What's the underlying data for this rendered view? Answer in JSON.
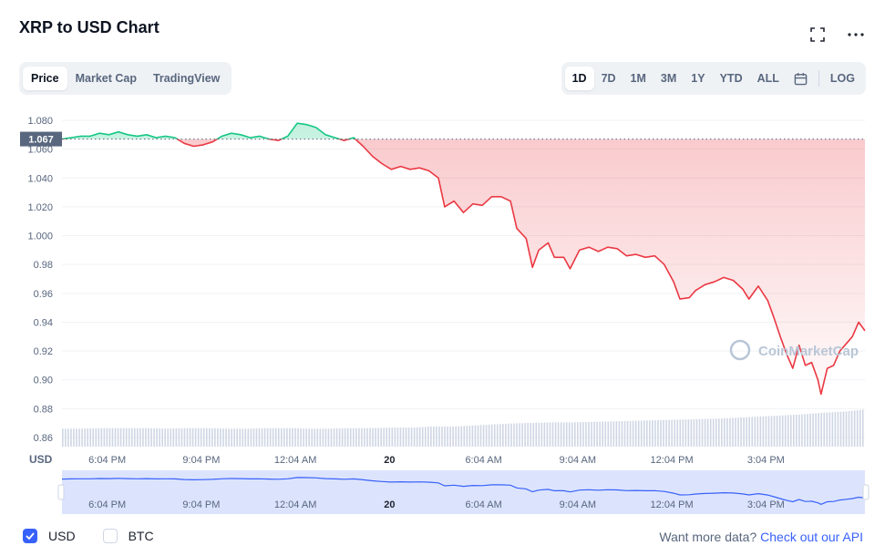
{
  "header": {
    "title": "XRP to USD Chart"
  },
  "icons": {
    "fullscreen": "fullscreen-icon",
    "more": "more-icon",
    "calendar": "calendar-icon",
    "watermark": "coinmarketcap-logo"
  },
  "tabs_left": [
    {
      "label": "Price",
      "active": true
    },
    {
      "label": "Market Cap",
      "active": false
    },
    {
      "label": "TradingView",
      "active": false
    }
  ],
  "tabs_right": [
    {
      "label": "1D",
      "active": true
    },
    {
      "label": "7D",
      "active": false
    },
    {
      "label": "1M",
      "active": false
    },
    {
      "label": "3M",
      "active": false
    },
    {
      "label": "1Y",
      "active": false
    },
    {
      "label": "YTD",
      "active": false
    },
    {
      "label": "ALL",
      "active": false
    }
  ],
  "log_label": "LOG",
  "legend": {
    "usd": "USD",
    "btc": "BTC"
  },
  "api": {
    "text": "Want more data?",
    "link": "Check out our API"
  },
  "watermark": "CoinMarketCap",
  "colors": {
    "up": "#16c784",
    "down": "#ea3943",
    "accent": "#3861fb",
    "volume": "#cfd6e4",
    "navigator_fill": "#dce4fd"
  },
  "chart_data": {
    "type": "line",
    "currency_label": "USD",
    "reference_price": 1.067,
    "reference_label": "1.067",
    "ylim": [
      0.86,
      1.08
    ],
    "y_ticks": [
      0.86,
      0.88,
      0.9,
      0.92,
      0.94,
      0.96,
      0.98,
      1.0,
      1.02,
      1.04,
      1.06,
      1.08
    ],
    "y_tick_labels": [
      "0.86",
      "0.88",
      "0.90",
      "0.92",
      "0.94",
      "0.96",
      "0.98",
      "1.000",
      "1.020",
      "1.040",
      "1.060",
      "1.080"
    ],
    "x_ticks": [
      "6:04 PM",
      "9:04 PM",
      "12:04 AM",
      "20",
      "6:04 AM",
      "9:04 AM",
      "12:04 PM",
      "3:04 PM"
    ],
    "x_tick_bold": [
      false,
      false,
      false,
      true,
      false,
      false,
      false,
      false
    ],
    "x_range_hours": [
      -0.6,
      23.4
    ],
    "series": [
      {
        "points": [
          [
            -0.6,
            1.067
          ],
          [
            -0.3,
            1.068
          ],
          [
            0,
            1.069
          ],
          [
            0.3,
            1.069
          ],
          [
            0.6,
            1.071
          ],
          [
            0.9,
            1.07
          ],
          [
            1.2,
            1.072
          ],
          [
            1.5,
            1.07
          ],
          [
            1.8,
            1.069
          ],
          [
            2.1,
            1.07
          ],
          [
            2.4,
            1.068
          ],
          [
            2.7,
            1.069
          ],
          [
            3.0,
            1.068
          ],
          [
            3.3,
            1.064
          ],
          [
            3.6,
            1.062
          ],
          [
            3.9,
            1.063
          ],
          [
            4.2,
            1.065
          ],
          [
            4.5,
            1.069
          ],
          [
            4.8,
            1.071
          ],
          [
            5.1,
            1.07
          ],
          [
            5.4,
            1.068
          ],
          [
            5.7,
            1.069
          ],
          [
            6.0,
            1.067
          ],
          [
            6.3,
            1.066
          ],
          [
            6.6,
            1.069
          ],
          [
            6.9,
            1.078
          ],
          [
            7.2,
            1.077
          ],
          [
            7.5,
            1.075
          ],
          [
            7.8,
            1.07
          ],
          [
            8.1,
            1.068
          ],
          [
            8.4,
            1.066
          ],
          [
            8.7,
            1.068
          ],
          [
            9.0,
            1.062
          ],
          [
            9.3,
            1.055
          ],
          [
            9.6,
            1.05
          ],
          [
            9.9,
            1.046
          ],
          [
            10.2,
            1.048
          ],
          [
            10.5,
            1.046
          ],
          [
            10.8,
            1.047
          ],
          [
            11.1,
            1.045
          ],
          [
            11.4,
            1.04
          ],
          [
            11.6,
            1.02
          ],
          [
            11.9,
            1.024
          ],
          [
            12.2,
            1.016
          ],
          [
            12.5,
            1.022
          ],
          [
            12.8,
            1.021
          ],
          [
            13.1,
            1.027
          ],
          [
            13.4,
            1.027
          ],
          [
            13.7,
            1.024
          ],
          [
            13.9,
            1.005
          ],
          [
            14.2,
            0.998
          ],
          [
            14.4,
            0.978
          ],
          [
            14.6,
            0.99
          ],
          [
            14.9,
            0.995
          ],
          [
            15.1,
            0.985
          ],
          [
            15.4,
            0.985
          ],
          [
            15.6,
            0.977
          ],
          [
            15.9,
            0.99
          ],
          [
            16.2,
            0.992
          ],
          [
            16.5,
            0.989
          ],
          [
            16.8,
            0.992
          ],
          [
            17.1,
            0.991
          ],
          [
            17.4,
            0.986
          ],
          [
            17.7,
            0.987
          ],
          [
            18.0,
            0.985
          ],
          [
            18.3,
            0.986
          ],
          [
            18.6,
            0.98
          ],
          [
            18.9,
            0.968
          ],
          [
            19.1,
            0.956
          ],
          [
            19.4,
            0.957
          ],
          [
            19.6,
            0.962
          ],
          [
            19.9,
            0.966
          ],
          [
            20.2,
            0.968
          ],
          [
            20.5,
            0.971
          ],
          [
            20.8,
            0.969
          ],
          [
            21.1,
            0.963
          ],
          [
            21.3,
            0.956
          ],
          [
            21.6,
            0.965
          ],
          [
            21.9,
            0.955
          ],
          [
            22.1,
            0.943
          ],
          [
            22.3,
            0.93
          ],
          [
            22.5,
            0.918
          ],
          [
            22.7,
            0.908
          ],
          [
            22.9,
            0.924
          ],
          [
            23.1,
            0.91
          ],
          [
            23.3,
            0.912
          ],
          [
            23.5,
            0.9
          ],
          [
            23.6,
            0.89
          ],
          [
            23.8,
            0.908
          ],
          [
            24.0,
            0.91
          ],
          [
            24.2,
            0.92
          ],
          [
            24.4,
            0.925
          ],
          [
            24.6,
            0.93
          ],
          [
            24.8,
            0.94
          ],
          [
            25.0,
            0.934
          ]
        ]
      }
    ],
    "volume_relative": [
      0.34,
      0.34,
      0.35,
      0.35,
      0.35,
      0.34,
      0.35,
      0.35,
      0.34,
      0.34,
      0.35,
      0.35,
      0.34,
      0.34,
      0.35,
      0.35,
      0.36,
      0.36,
      0.38,
      0.38,
      0.4,
      0.42,
      0.44,
      0.45,
      0.46,
      0.46,
      0.47,
      0.48,
      0.49,
      0.5,
      0.51,
      0.52,
      0.53,
      0.55,
      0.57,
      0.59,
      0.61,
      0.64,
      0.66,
      0.7
    ]
  },
  "navigator": {
    "x_ticks": [
      "6:04 PM",
      "9:04 PM",
      "12:04 AM",
      "20",
      "6:04 AM",
      "9:04 AM",
      "12:04 PM",
      "3:04 PM"
    ]
  }
}
